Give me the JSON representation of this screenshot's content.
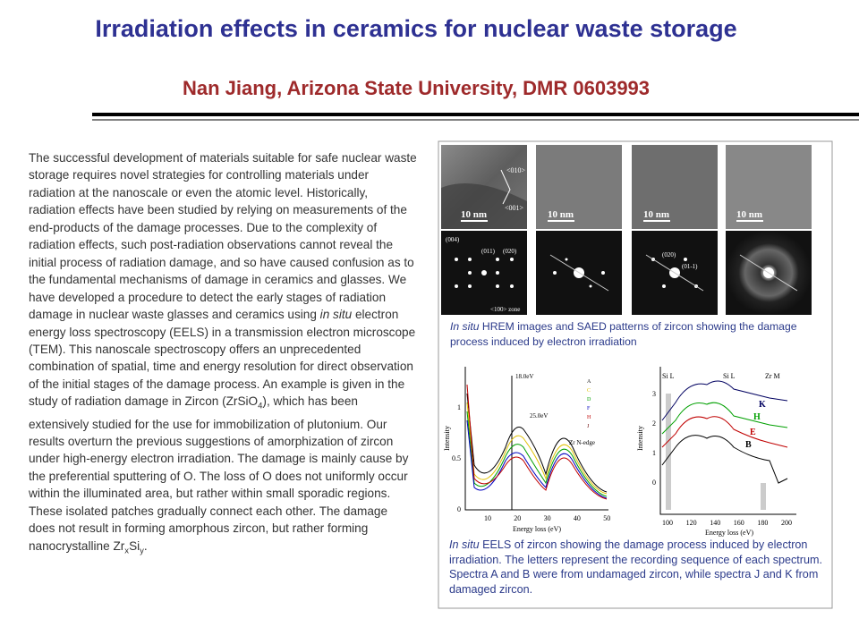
{
  "header": {
    "title": "Irradiation effects in ceramics for nuclear waste storage",
    "subtitle": "Nan Jiang, Arizona State University, DMR 0603993"
  },
  "body": {
    "runs": [
      {
        "text": "The successful development of materials suitable for safe nuclear waste storage requires novel strategies for controlling materials under radiation at the nanoscale or even the atomic level. Historically, radiation effects have been studied by relying on measurements of the end-products of the damage processes.  Due to the complexity of radiation effects, such post-radiation observations cannot reveal the initial process of radiation damage, and so have caused confusion as to the fundamental mechanisms of damage in ceramics and glasses. We have developed a procedure to detect the early stages of radiation damage in nuclear waste glasses and ceramics using "
      },
      {
        "text": "in situ",
        "style": "italic"
      },
      {
        "text": " electron energy loss spectroscopy (EELS) in a transmission electron microscope (TEM). This nanoscale spectroscopy offers an unprecedented combination of spatial, time and energy resolution for direct observation of the initial stages of the damage process. An example is given in the study of radiation damage in Zircon (ZrSiO"
      },
      {
        "text": "4",
        "style": "sub"
      },
      {
        "text": "), which has been extensively studied for the use for immobilization of plutonium.  Our results overturn the previous suggestions of amorphization of zircon under high-energy electron irradiation. The damage is mainly cause by the preferential sputtering of O. The loss of O does not uniformly occur within the illuminated area, but rather within small sporadic regions. These isolated patches gradually connect each other. The damage does not result in forming amorphous zircon, but rather forming nanocrystalline Zr"
      },
      {
        "text": "x",
        "style": "sub"
      },
      {
        "text": "Si"
      },
      {
        "text": "y",
        "style": "sub"
      },
      {
        "text": "."
      }
    ]
  },
  "figure": {
    "scale_bar": "10 nm",
    "zone_labels": [
      "<010>",
      "<001>"
    ],
    "pattern_labels_first": [
      "(004)",
      "(011)",
      "(020)",
      "<100> zone"
    ],
    "pattern_labels_third": [
      "(020)",
      "(01-1)"
    ],
    "caption_top": {
      "runs": [
        {
          "text": "In situ",
          "style": "italic"
        },
        {
          "text": " HREM images and SAED patterns of zircon showing the damage process induced by electron irradiation"
        }
      ]
    },
    "eels_left": {
      "y_label": "Intensity",
      "x_label": "Energy loss (eV)",
      "xticks": [
        10,
        20,
        30,
        40,
        50
      ],
      "yticks": [
        0,
        0.5,
        1
      ],
      "annotations": [
        "18.0eV",
        "25.0eV",
        "Zr N-edge"
      ],
      "legend": [
        "A",
        "C",
        "D",
        "F",
        "H",
        "J"
      ]
    },
    "eels_right": {
      "y_label": "Intensity",
      "x_label": "Energy loss (eV)",
      "xticks": [
        100,
        120,
        140,
        160,
        180,
        200
      ],
      "yticks": [
        0,
        1,
        2,
        3
      ],
      "edges": [
        "Si L",
        "Si L",
        "Zr M"
      ],
      "letters": [
        "K",
        "H",
        "E",
        "B"
      ]
    },
    "caption_bottom": {
      "runs": [
        {
          "text": "In situ",
          "style": "italic"
        },
        {
          "text": " EELS of zircon showing the damage process induced by electron irradiation.  The letters represent the recording sequence of each spectrum. Spectra A and B were from undamaged zircon, while spectra J and K from damaged zircon."
        }
      ]
    }
  }
}
